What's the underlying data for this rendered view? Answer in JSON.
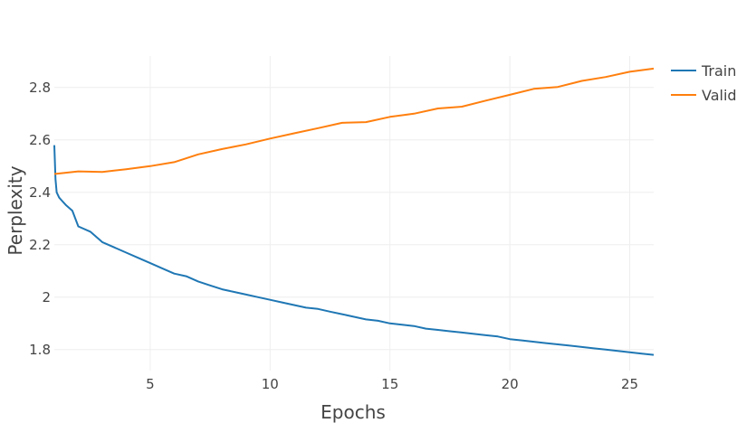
{
  "chart_data": {
    "type": "line",
    "title": "",
    "xlabel": "Epochs",
    "ylabel": "Perplexity",
    "xlim": [
      1,
      26
    ],
    "ylim": [
      1.72,
      2.92
    ],
    "grid": true,
    "legend": "top-right",
    "x_ticks": [
      5,
      10,
      15,
      20,
      25
    ],
    "x_tick_labels": [
      "5",
      "10",
      "15",
      "20",
      "25"
    ],
    "y_ticks": [
      1.8,
      2.0,
      2.2,
      2.4,
      2.6,
      2.8
    ],
    "y_tick_labels": [
      "1.8",
      "2",
      "2.2",
      "2.4",
      "2.6",
      "2.8"
    ],
    "series": [
      {
        "name": "Train",
        "color": "#1f77b4",
        "x": [
          1.0,
          1.05,
          1.1,
          1.2,
          1.3,
          1.5,
          1.75,
          2.0,
          2.5,
          3.0,
          3.5,
          4.0,
          4.5,
          5.0,
          5.5,
          6.0,
          6.5,
          7.0,
          7.5,
          8.0,
          8.5,
          9.0,
          9.5,
          10.0,
          10.5,
          11.0,
          11.5,
          12.0,
          12.5,
          13.0,
          13.5,
          14.0,
          14.5,
          15.0,
          15.5,
          16.0,
          16.5,
          17.0,
          17.5,
          18.0,
          18.5,
          19.0,
          19.5,
          20.0,
          20.5,
          21.0,
          21.5,
          22.0,
          22.5,
          23.0,
          23.5,
          24.0,
          24.5,
          25.0,
          25.5,
          26.0
        ],
        "values": [
          2.58,
          2.45,
          2.4,
          2.38,
          2.37,
          2.35,
          2.33,
          2.27,
          2.25,
          2.21,
          2.19,
          2.17,
          2.15,
          2.13,
          2.11,
          2.09,
          2.08,
          2.06,
          2.045,
          2.03,
          2.02,
          2.01,
          2.0,
          1.99,
          1.98,
          1.97,
          1.96,
          1.955,
          1.945,
          1.935,
          1.925,
          1.915,
          1.91,
          1.9,
          1.895,
          1.89,
          1.88,
          1.875,
          1.87,
          1.865,
          1.86,
          1.855,
          1.85,
          1.84,
          1.835,
          1.83,
          1.825,
          1.82,
          1.815,
          1.81,
          1.805,
          1.8,
          1.795,
          1.79,
          1.785,
          1.78
        ]
      },
      {
        "name": "Valid",
        "color": "#ff7f0e",
        "x": [
          1,
          2,
          3,
          4,
          5,
          6,
          7,
          8,
          9,
          10,
          11,
          12,
          13,
          14,
          15,
          16,
          17,
          18,
          19,
          20,
          21,
          22,
          23,
          24,
          25,
          26
        ],
        "values": [
          2.47,
          2.48,
          2.478,
          2.488,
          2.5,
          2.515,
          2.545,
          2.565,
          2.583,
          2.605,
          2.625,
          2.645,
          2.665,
          2.668,
          2.688,
          2.7,
          2.72,
          2.727,
          2.75,
          2.772,
          2.795,
          2.802,
          2.825,
          2.84,
          2.86,
          2.872
        ]
      }
    ]
  }
}
